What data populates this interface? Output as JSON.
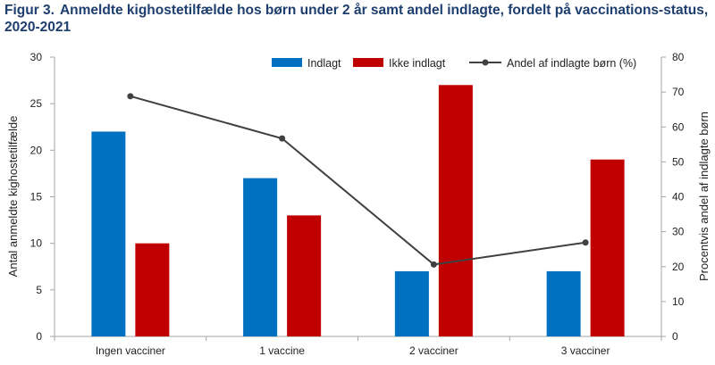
{
  "figure": {
    "number": "Figur 3.",
    "title": "Anmeldte kighostetilfælde  hos børn under 2 år samt andel indlagte, fordelt på vaccinations-status,  2020-2021"
  },
  "chart_data": {
    "type": "bar",
    "categories": [
      "Ingen vacciner",
      "1 vaccine",
      "2 vacciner",
      "3 vacciner"
    ],
    "series": [
      {
        "name": "Indlagt",
        "type": "bar",
        "axis": "left",
        "color": "#0070c0",
        "values": [
          22,
          17,
          7,
          7
        ]
      },
      {
        "name": "Ikke indlagt",
        "type": "bar",
        "axis": "left",
        "color": "#c00000",
        "values": [
          10,
          13,
          27,
          19
        ]
      },
      {
        "name": "Andel af indlagte børn (%)",
        "type": "line",
        "axis": "right",
        "color": "#404040",
        "values": [
          68.8,
          56.7,
          20.6,
          26.9
        ]
      }
    ],
    "ylabel": "Antal anmeldte kighostetilfælde",
    "y2label": "Procentvis andel af indlagte børn",
    "ylim": [
      0,
      30
    ],
    "y2lim": [
      0,
      80
    ],
    "yticks": [
      "0",
      "5",
      "10",
      "15",
      "20",
      "25",
      "30"
    ],
    "y2ticks": [
      "0",
      "10",
      "20",
      "30",
      "40",
      "50",
      "60",
      "70",
      "80"
    ],
    "grid": false,
    "legend": "top-right"
  }
}
